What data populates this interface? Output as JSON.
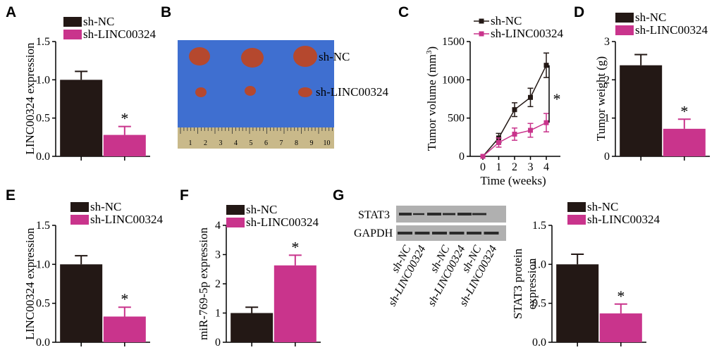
{
  "colors": {
    "control": "#231815",
    "treatment": "#c9348c",
    "blot_bg": "#b0b0b0",
    "band": "#2a2a2a",
    "ruler": "#c9b98a",
    "photo_bg": "#3f6fd0",
    "tumor": "#b5482e"
  },
  "panels": {
    "A": {
      "label": "A"
    },
    "B": {
      "label": "B",
      "row1_label": "sh-NC",
      "row2_label": "sh-LINC00324",
      "ruler_numbers": [
        "1",
        "2",
        "3",
        "4",
        "5",
        "6",
        "7",
        "8",
        "9",
        "10"
      ]
    },
    "C": {
      "label": "C"
    },
    "D": {
      "label": "D"
    },
    "E": {
      "label": "E"
    },
    "F": {
      "label": "F"
    },
    "G": {
      "label": "G",
      "blot_rows": [
        "STAT3",
        "GAPDH"
      ],
      "lane_labels": [
        "sh-NC",
        "sh-LINC00324",
        "sh-NC",
        "sh-LINC00324",
        "sh-NC",
        "sh-LINC00324"
      ]
    }
  },
  "chart_data": [
    {
      "panel": "A",
      "type": "bar",
      "categories": [
        "sh-NC",
        "sh-LINC00324"
      ],
      "values": [
        1.0,
        0.28
      ],
      "errors": [
        0.11,
        0.11
      ],
      "ylabel": "LINC00324 expression",
      "ylim": [
        0,
        1.5
      ],
      "yticks": [
        "0.0",
        "0.5",
        "1.0",
        "1.5"
      ],
      "annotations": [
        "*"
      ],
      "legend": [
        "sh-NC",
        "sh-LINC00324"
      ]
    },
    {
      "panel": "C",
      "type": "line",
      "x": [
        0,
        1,
        2,
        3,
        4
      ],
      "series": [
        {
          "name": "sh-NC",
          "values": [
            0,
            240,
            610,
            770,
            1190
          ],
          "errors": [
            0,
            60,
            90,
            120,
            160
          ]
        },
        {
          "name": "sh-LINC00324",
          "values": [
            0,
            180,
            290,
            340,
            440
          ],
          "errors": [
            0,
            60,
            80,
            90,
            120
          ]
        }
      ],
      "xlabel": "Time (weeks)",
      "ylabel": "Tumor volume (mm³)",
      "ylabel_main": "Tumor volume (mm",
      "ylabel_sup": "3",
      "ylabel_close": ")",
      "ylim": [
        0,
        1500
      ],
      "yticks": [
        "0",
        "500",
        "1000",
        "1500"
      ],
      "xticks": [
        "0",
        "1",
        "2",
        "3",
        "4"
      ],
      "annotations": [
        "*"
      ],
      "legend": [
        "sh-NC",
        "sh-LINC00324"
      ]
    },
    {
      "panel": "D",
      "type": "bar",
      "categories": [
        "sh-NC",
        "sh-LINC00324"
      ],
      "values": [
        2.38,
        0.72
      ],
      "errors": [
        0.28,
        0.25
      ],
      "ylabel": "Tumor weight (g)",
      "ylim": [
        0,
        3
      ],
      "yticks": [
        "0",
        "1",
        "2",
        "3"
      ],
      "annotations": [
        "*"
      ],
      "legend": [
        "sh-NC",
        "sh-LINC00324"
      ]
    },
    {
      "panel": "E",
      "type": "bar",
      "categories": [
        "sh-NC",
        "sh-LINC00324"
      ],
      "values": [
        1.0,
        0.33
      ],
      "errors": [
        0.11,
        0.12
      ],
      "ylabel": "LINC00324 expression",
      "ylim": [
        0,
        1.5
      ],
      "yticks": [
        "0.0",
        "0.5",
        "1.0",
        "1.5"
      ],
      "annotations": [
        "*"
      ],
      "legend": [
        "sh-NC",
        "sh-LINC00324"
      ]
    },
    {
      "panel": "F",
      "type": "bar",
      "categories": [
        "sh-NC",
        "sh-LINC00324"
      ],
      "values": [
        1.0,
        2.63
      ],
      "errors": [
        0.2,
        0.35
      ],
      "ylabel": "miR-769-5p expression",
      "ylim": [
        0,
        4
      ],
      "yticks": [
        "0",
        "1",
        "2",
        "3",
        "4"
      ],
      "annotations": [
        "*"
      ],
      "legend": [
        "sh-NC",
        "sh-LINC00324"
      ]
    },
    {
      "panel": "G",
      "type": "bar",
      "categories": [
        "sh-NC",
        "sh-LINC00324"
      ],
      "values": [
        1.0,
        0.37
      ],
      "errors": [
        0.13,
        0.12
      ],
      "ylabel": "STAT3 protein expression",
      "ylabel_lines": [
        "STAT3 protein",
        "expression"
      ],
      "ylim": [
        0,
        1.5
      ],
      "yticks": [
        "0.0",
        "0.5",
        "1.0",
        "1.5"
      ],
      "annotations": [
        "*"
      ],
      "legend": [
        "sh-NC",
        "sh-LINC00324"
      ]
    }
  ]
}
